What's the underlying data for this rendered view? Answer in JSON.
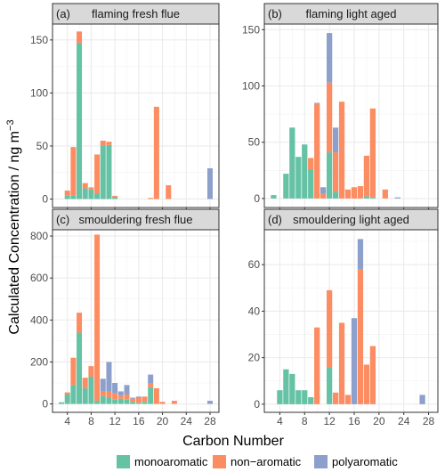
{
  "chart_data": {
    "type": "bar",
    "stacked": true,
    "xlabel": "Carbon Number",
    "ylabel": "Calculated Concentration / ng m",
    "ylabel_superscript": "−3",
    "legend": {
      "placement": "bottom",
      "entries": [
        {
          "key": "monoaromatic",
          "label": "monoaromatic",
          "color": "#66C2A5"
        },
        {
          "key": "nonaromatic",
          "label": "non−aromatic",
          "color": "#FC8D62"
        },
        {
          "key": "polyaromatic",
          "label": "polyaromatic",
          "color": "#8DA0CB"
        }
      ]
    },
    "grid": true,
    "panels": [
      {
        "tag": "(a)",
        "title": "flaming fresh flue",
        "xlim": [
          1.5,
          29.5
        ],
        "ylim": [
          -8,
          165
        ],
        "yticks": [
          0,
          50,
          100,
          150
        ],
        "bars": [
          {
            "x": 4,
            "monoaromatic": 3,
            "nonaromatic": 5,
            "polyaromatic": 0
          },
          {
            "x": 5,
            "monoaromatic": 3,
            "nonaromatic": 46,
            "polyaromatic": 0
          },
          {
            "x": 6,
            "monoaromatic": 147,
            "nonaromatic": 11,
            "polyaromatic": 0
          },
          {
            "x": 7,
            "monoaromatic": 10,
            "nonaromatic": 5,
            "polyaromatic": 0
          },
          {
            "x": 8,
            "monoaromatic": 9,
            "nonaromatic": 2,
            "polyaromatic": 0
          },
          {
            "x": 9,
            "monoaromatic": 5,
            "nonaromatic": 37,
            "polyaromatic": 0
          },
          {
            "x": 10,
            "monoaromatic": 50,
            "nonaromatic": 5,
            "polyaromatic": 0
          },
          {
            "x": 11,
            "monoaromatic": 51,
            "nonaromatic": 3,
            "polyaromatic": 0
          },
          {
            "x": 12,
            "monoaromatic": 2,
            "nonaromatic": 1,
            "polyaromatic": 0
          },
          {
            "x": 18,
            "monoaromatic": 0,
            "nonaromatic": 1,
            "polyaromatic": 0
          },
          {
            "x": 19,
            "monoaromatic": 0,
            "nonaromatic": 87,
            "polyaromatic": 0
          },
          {
            "x": 21,
            "monoaromatic": 0,
            "nonaromatic": 13,
            "polyaromatic": 0
          },
          {
            "x": 28,
            "monoaromatic": 0,
            "nonaromatic": 0,
            "polyaromatic": 29
          }
        ]
      },
      {
        "tag": "(b)",
        "title": "flaming light aged",
        "xlim": [
          1.5,
          29.5
        ],
        "ylim": [
          -8,
          155
        ],
        "yticks": [
          0,
          50,
          100,
          150
        ],
        "bars": [
          {
            "x": 3,
            "monoaromatic": 3,
            "nonaromatic": 0,
            "polyaromatic": 0
          },
          {
            "x": 5,
            "monoaromatic": 22,
            "nonaromatic": 0,
            "polyaromatic": 0
          },
          {
            "x": 6,
            "monoaromatic": 63,
            "nonaromatic": 0,
            "polyaromatic": 0
          },
          {
            "x": 7,
            "monoaromatic": 37,
            "nonaromatic": 0,
            "polyaromatic": 0
          },
          {
            "x": 8,
            "monoaromatic": 48,
            "nonaromatic": 0,
            "polyaromatic": 0
          },
          {
            "x": 9,
            "monoaromatic": 26,
            "nonaromatic": 10,
            "polyaromatic": 0
          },
          {
            "x": 10,
            "monoaromatic": 0,
            "nonaromatic": 84,
            "polyaromatic": 1
          },
          {
            "x": 11,
            "monoaromatic": 0,
            "nonaromatic": 4,
            "polyaromatic": 6
          },
          {
            "x": 12,
            "monoaromatic": 41,
            "nonaromatic": 62,
            "polyaromatic": 44
          },
          {
            "x": 13,
            "monoaromatic": 6,
            "nonaromatic": 35,
            "polyaromatic": 22
          },
          {
            "x": 14,
            "monoaromatic": 0,
            "nonaromatic": 86,
            "polyaromatic": 0
          },
          {
            "x": 15,
            "monoaromatic": 0,
            "nonaromatic": 8,
            "polyaromatic": 0
          },
          {
            "x": 16,
            "monoaromatic": 0,
            "nonaromatic": 10,
            "polyaromatic": 0
          },
          {
            "x": 17,
            "monoaromatic": 0,
            "nonaromatic": 11,
            "polyaromatic": 0
          },
          {
            "x": 18,
            "monoaromatic": 2,
            "nonaromatic": 36,
            "polyaromatic": 0
          },
          {
            "x": 19,
            "monoaromatic": 1,
            "nonaromatic": 79,
            "polyaromatic": 0
          },
          {
            "x": 21,
            "monoaromatic": 0,
            "nonaromatic": 8,
            "polyaromatic": 0
          },
          {
            "x": 23,
            "monoaromatic": 0,
            "nonaromatic": 0,
            "polyaromatic": 1
          }
        ]
      },
      {
        "tag": "(c)",
        "title": "smouldering fresh flue",
        "xlim": [
          1.5,
          29.5
        ],
        "ylim": [
          -40,
          830
        ],
        "yticks": [
          0,
          200,
          400,
          600,
          800
        ],
        "bars": [
          {
            "x": 3,
            "monoaromatic": 8,
            "nonaromatic": 0,
            "polyaromatic": 0
          },
          {
            "x": 4,
            "monoaromatic": 45,
            "nonaromatic": 10,
            "polyaromatic": 0
          },
          {
            "x": 5,
            "monoaromatic": 90,
            "nonaromatic": 130,
            "polyaromatic": 0
          },
          {
            "x": 6,
            "monoaromatic": 340,
            "nonaromatic": 95,
            "polyaromatic": 0
          },
          {
            "x": 7,
            "monoaromatic": 75,
            "nonaromatic": 50,
            "polyaromatic": 0
          },
          {
            "x": 8,
            "monoaromatic": 130,
            "nonaromatic": 50,
            "polyaromatic": 0
          },
          {
            "x": 9,
            "monoaromatic": 15,
            "nonaromatic": 792,
            "polyaromatic": 0
          },
          {
            "x": 10,
            "monoaromatic": 40,
            "nonaromatic": 20,
            "polyaromatic": 60
          },
          {
            "x": 11,
            "monoaromatic": 30,
            "nonaromatic": 30,
            "polyaromatic": 140
          },
          {
            "x": 12,
            "monoaromatic": 20,
            "nonaromatic": 30,
            "polyaromatic": 50
          },
          {
            "x": 13,
            "monoaromatic": 25,
            "nonaromatic": 15,
            "polyaromatic": 20
          },
          {
            "x": 14,
            "monoaromatic": 20,
            "nonaromatic": 25,
            "polyaromatic": 45
          },
          {
            "x": 15,
            "monoaromatic": 10,
            "nonaromatic": 15,
            "polyaromatic": 5
          },
          {
            "x": 16,
            "monoaromatic": 5,
            "nonaromatic": 25,
            "polyaromatic": 5
          },
          {
            "x": 17,
            "monoaromatic": 10,
            "nonaromatic": 25,
            "polyaromatic": 0
          },
          {
            "x": 18,
            "monoaromatic": 80,
            "nonaromatic": 20,
            "polyaromatic": 40
          },
          {
            "x": 19,
            "monoaromatic": 0,
            "nonaromatic": 75,
            "polyaromatic": 0
          },
          {
            "x": 20,
            "monoaromatic": 0,
            "nonaromatic": 10,
            "polyaromatic": 0
          },
          {
            "x": 22,
            "monoaromatic": 0,
            "nonaromatic": 15,
            "polyaromatic": 0
          },
          {
            "x": 28,
            "monoaromatic": 0,
            "nonaromatic": 0,
            "polyaromatic": 15
          }
        ]
      },
      {
        "tag": "(d)",
        "title": "smouldering light aged",
        "xlim": [
          1.5,
          29.5
        ],
        "ylim": [
          -3.5,
          75
        ],
        "yticks": [
          0,
          20,
          40,
          60
        ],
        "bars": [
          {
            "x": 4,
            "monoaromatic": 6,
            "nonaromatic": 0,
            "polyaromatic": 0
          },
          {
            "x": 5,
            "monoaromatic": 15,
            "nonaromatic": 0,
            "polyaromatic": 0
          },
          {
            "x": 6,
            "monoaromatic": 13,
            "nonaromatic": 0,
            "polyaromatic": 0
          },
          {
            "x": 7,
            "monoaromatic": 6,
            "nonaromatic": 0,
            "polyaromatic": 0
          },
          {
            "x": 8,
            "monoaromatic": 6,
            "nonaromatic": 0,
            "polyaromatic": 0
          },
          {
            "x": 9,
            "monoaromatic": 3,
            "nonaromatic": 0,
            "polyaromatic": 0
          },
          {
            "x": 10,
            "monoaromatic": 0,
            "nonaromatic": 33,
            "polyaromatic": 0
          },
          {
            "x": 12,
            "monoaromatic": 16,
            "nonaromatic": 33,
            "polyaromatic": 0
          },
          {
            "x": 13,
            "monoaromatic": 0,
            "nonaromatic": 5,
            "polyaromatic": 0
          },
          {
            "x": 14,
            "monoaromatic": 0,
            "nonaromatic": 35,
            "polyaromatic": 0
          },
          {
            "x": 15,
            "monoaromatic": 0,
            "nonaromatic": 4,
            "polyaromatic": 0
          },
          {
            "x": 16,
            "monoaromatic": 0,
            "nonaromatic": 0,
            "polyaromatic": 37
          },
          {
            "x": 17,
            "monoaromatic": 0,
            "nonaromatic": 58,
            "polyaromatic": 13
          },
          {
            "x": 18,
            "monoaromatic": 0,
            "nonaromatic": 17,
            "polyaromatic": 0
          },
          {
            "x": 19,
            "monoaromatic": 0,
            "nonaromatic": 25,
            "polyaromatic": 0
          },
          {
            "x": 27,
            "monoaromatic": 0,
            "nonaromatic": 0,
            "polyaromatic": 4
          }
        ]
      }
    ],
    "xticks": [
      4,
      8,
      12,
      16,
      20,
      24,
      28
    ]
  }
}
